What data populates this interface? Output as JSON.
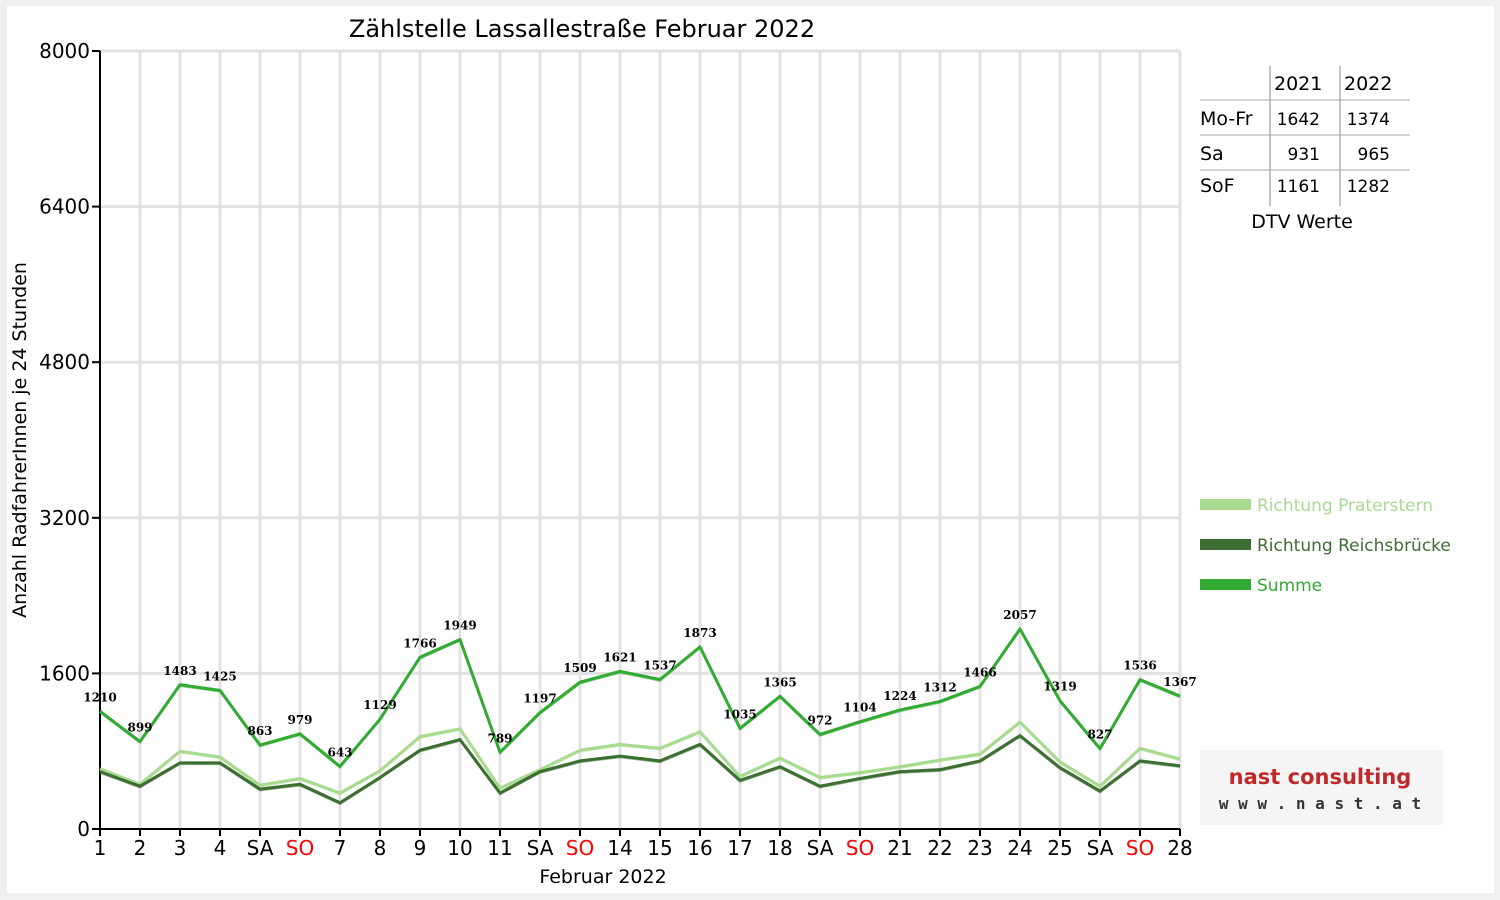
{
  "chart_data": {
    "type": "line",
    "title": "Zählstelle Lassallestraße Februar 2022",
    "xlabel": "Februar 2022",
    "ylabel": "Anzahl RadfahrerInnen je 24 Stunden",
    "ylim": [
      0,
      8000
    ],
    "yticks": [
      "0",
      "1600",
      "3200",
      "4800",
      "6400",
      "8000"
    ],
    "categories": [
      "1",
      "2",
      "3",
      "4",
      "SA",
      "SO",
      "7",
      "8",
      "9",
      "10",
      "11",
      "SA",
      "SO",
      "14",
      "15",
      "16",
      "17",
      "18",
      "SA",
      "SO",
      "21",
      "22",
      "23",
      "24",
      "25",
      "SA",
      "SO",
      "28"
    ],
    "sunday_color": "#ff0000",
    "grid": true,
    "legend_position": "right",
    "series": [
      {
        "name": "Richtung Praterstern",
        "color": "#a8da90",
        "values": [
          620,
          460,
          800,
          740,
          450,
          520,
          370,
          600,
          950,
          1030,
          420,
          610,
          810,
          870,
          830,
          1000,
          540,
          730,
          530,
          580,
          640,
          710,
          770,
          1100,
          690,
          440,
          830,
          720
        ]
      },
      {
        "name": "Richtung Reichsbrücke",
        "color": "#3d6e32",
        "values": [
          590,
          440,
          680,
          680,
          410,
          460,
          270,
          530,
          810,
          920,
          370,
          590,
          700,
          750,
          700,
          870,
          500,
          640,
          440,
          520,
          590,
          610,
          700,
          960,
          630,
          390,
          700,
          650
        ]
      },
      {
        "name": "Summe",
        "color": "#33aa33",
        "values": [
          1210,
          899,
          1483,
          1425,
          863,
          979,
          643,
          1129,
          1766,
          1949,
          789,
          1197,
          1509,
          1621,
          1537,
          1873,
          1035,
          1365,
          972,
          1104,
          1224,
          1312,
          1466,
          2057,
          1319,
          827,
          1536,
          1367
        ],
        "labels": [
          "1210",
          "899",
          "1483",
          "1425",
          "863",
          "979",
          "643",
          "1129",
          "1766",
          "1949",
          "789",
          "1197",
          "1509",
          "1621",
          "1537",
          "1873",
          "1035",
          "1365",
          "972",
          "1104",
          "1224",
          "1312",
          "1466",
          "2057",
          "1319",
          "827",
          "1536",
          "1367"
        ]
      }
    ]
  },
  "dtv_table": {
    "caption": "DTV Werte",
    "columns": [
      "2021",
      "2022"
    ],
    "rows": [
      {
        "label": "Mo-Fr",
        "v2021": "1642",
        "v2022": "1374"
      },
      {
        "label": "Sa",
        "v2021": "931",
        "v2022": "965"
      },
      {
        "label": "SoF",
        "v2021": "1161",
        "v2022": "1282"
      }
    ]
  },
  "logo": {
    "name": "nast consulting",
    "url": "w w w . n a s t . a t"
  }
}
